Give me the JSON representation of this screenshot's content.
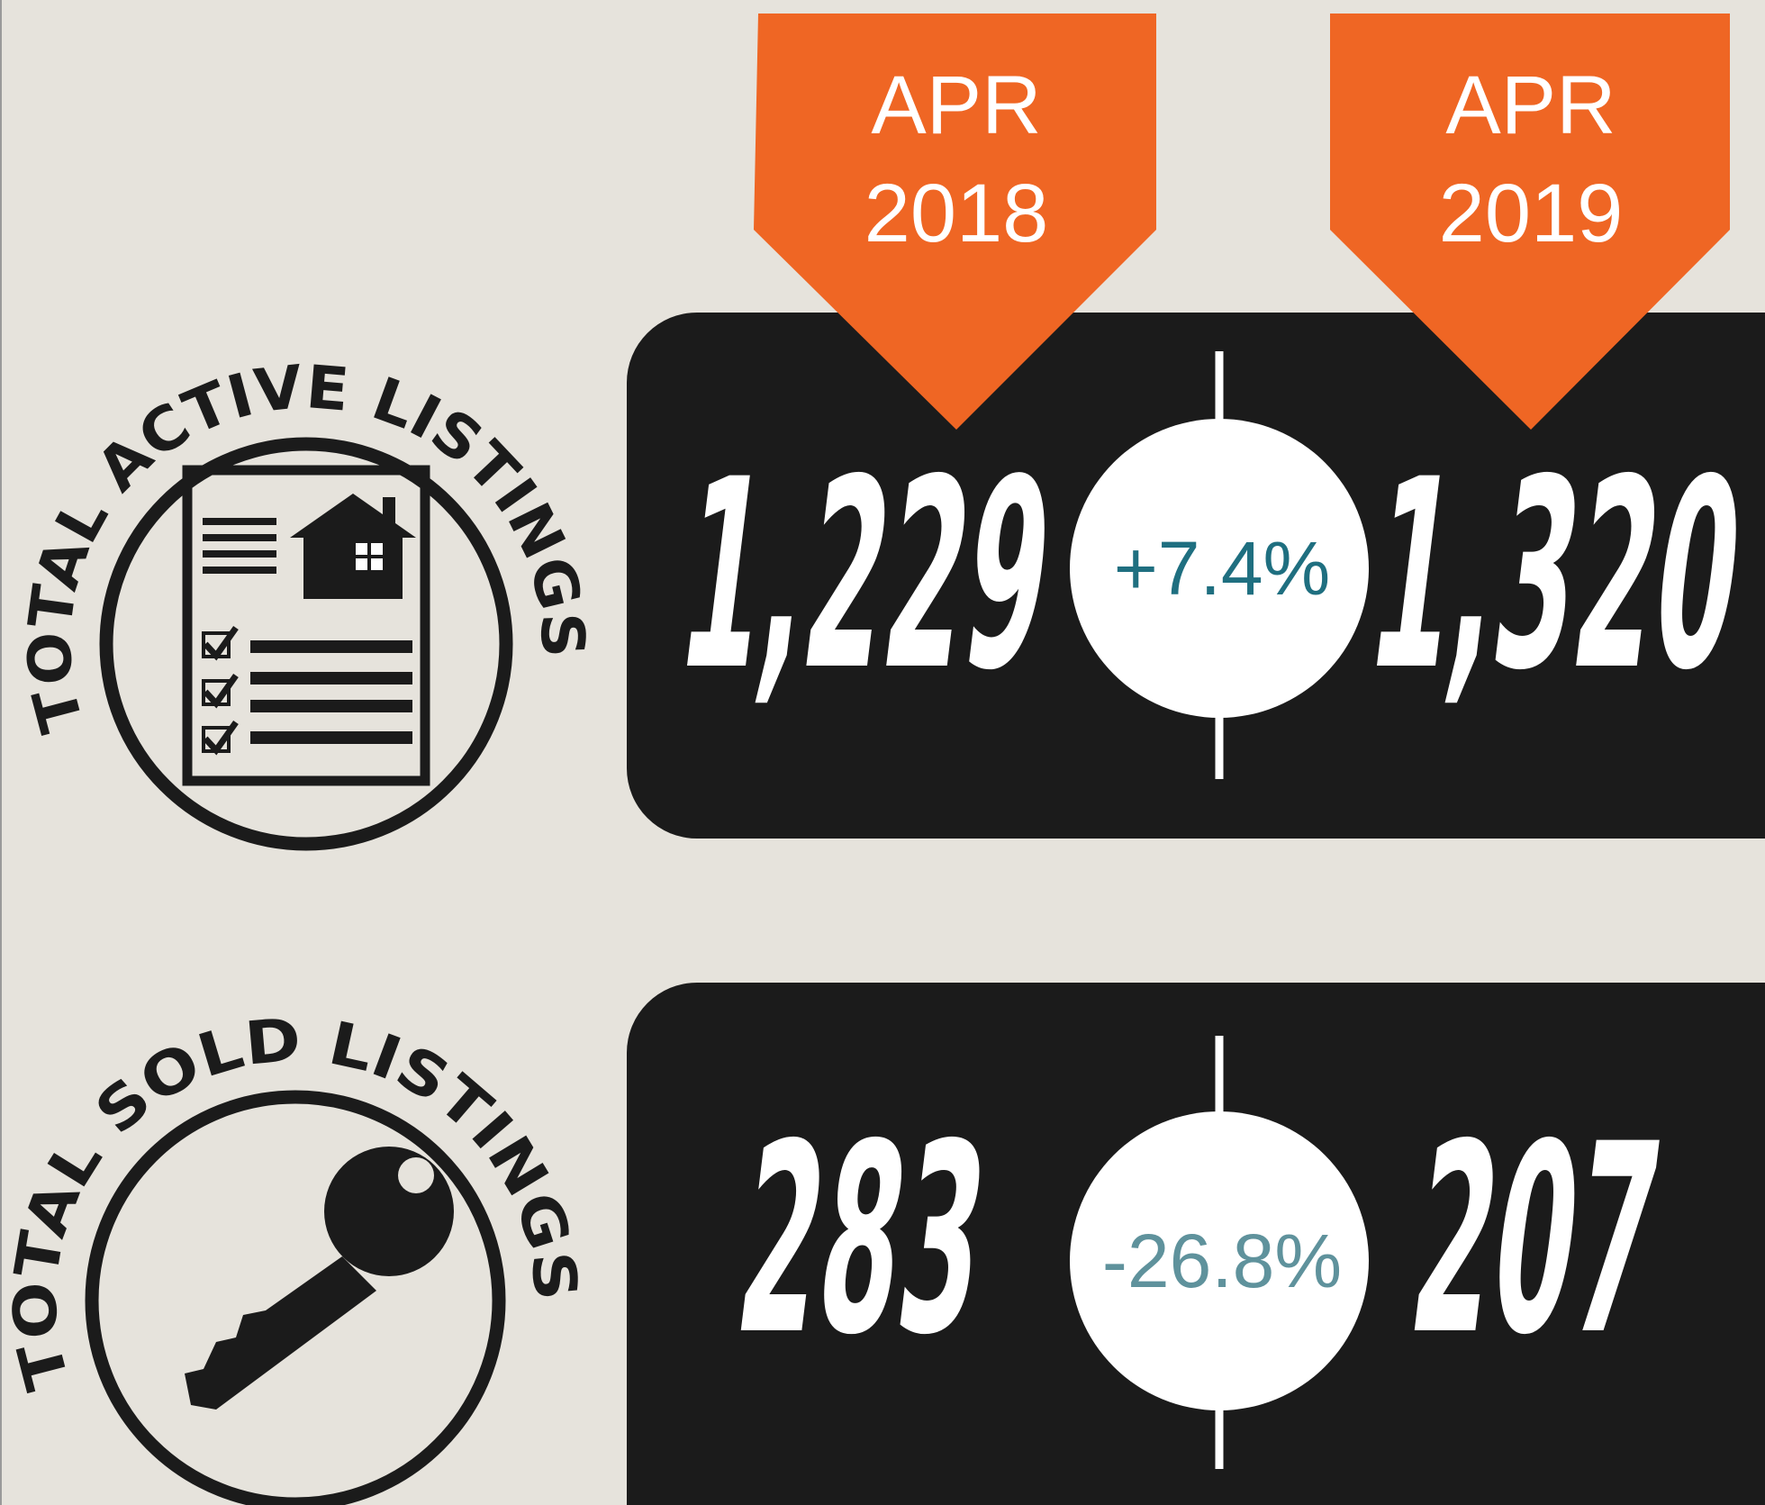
{
  "periods": [
    {
      "month": "APR",
      "year": "2018"
    },
    {
      "month": "APR",
      "year": "2019"
    }
  ],
  "rows": [
    {
      "label": "TOTAL ACTIVE LISTINGS",
      "values": [
        "1,229",
        "1,320"
      ],
      "change": "+7.4%"
    },
    {
      "label": "TOTAL SOLD LISTINGS",
      "values": [
        "283",
        "207"
      ],
      "change": "-26.8%"
    }
  ]
}
